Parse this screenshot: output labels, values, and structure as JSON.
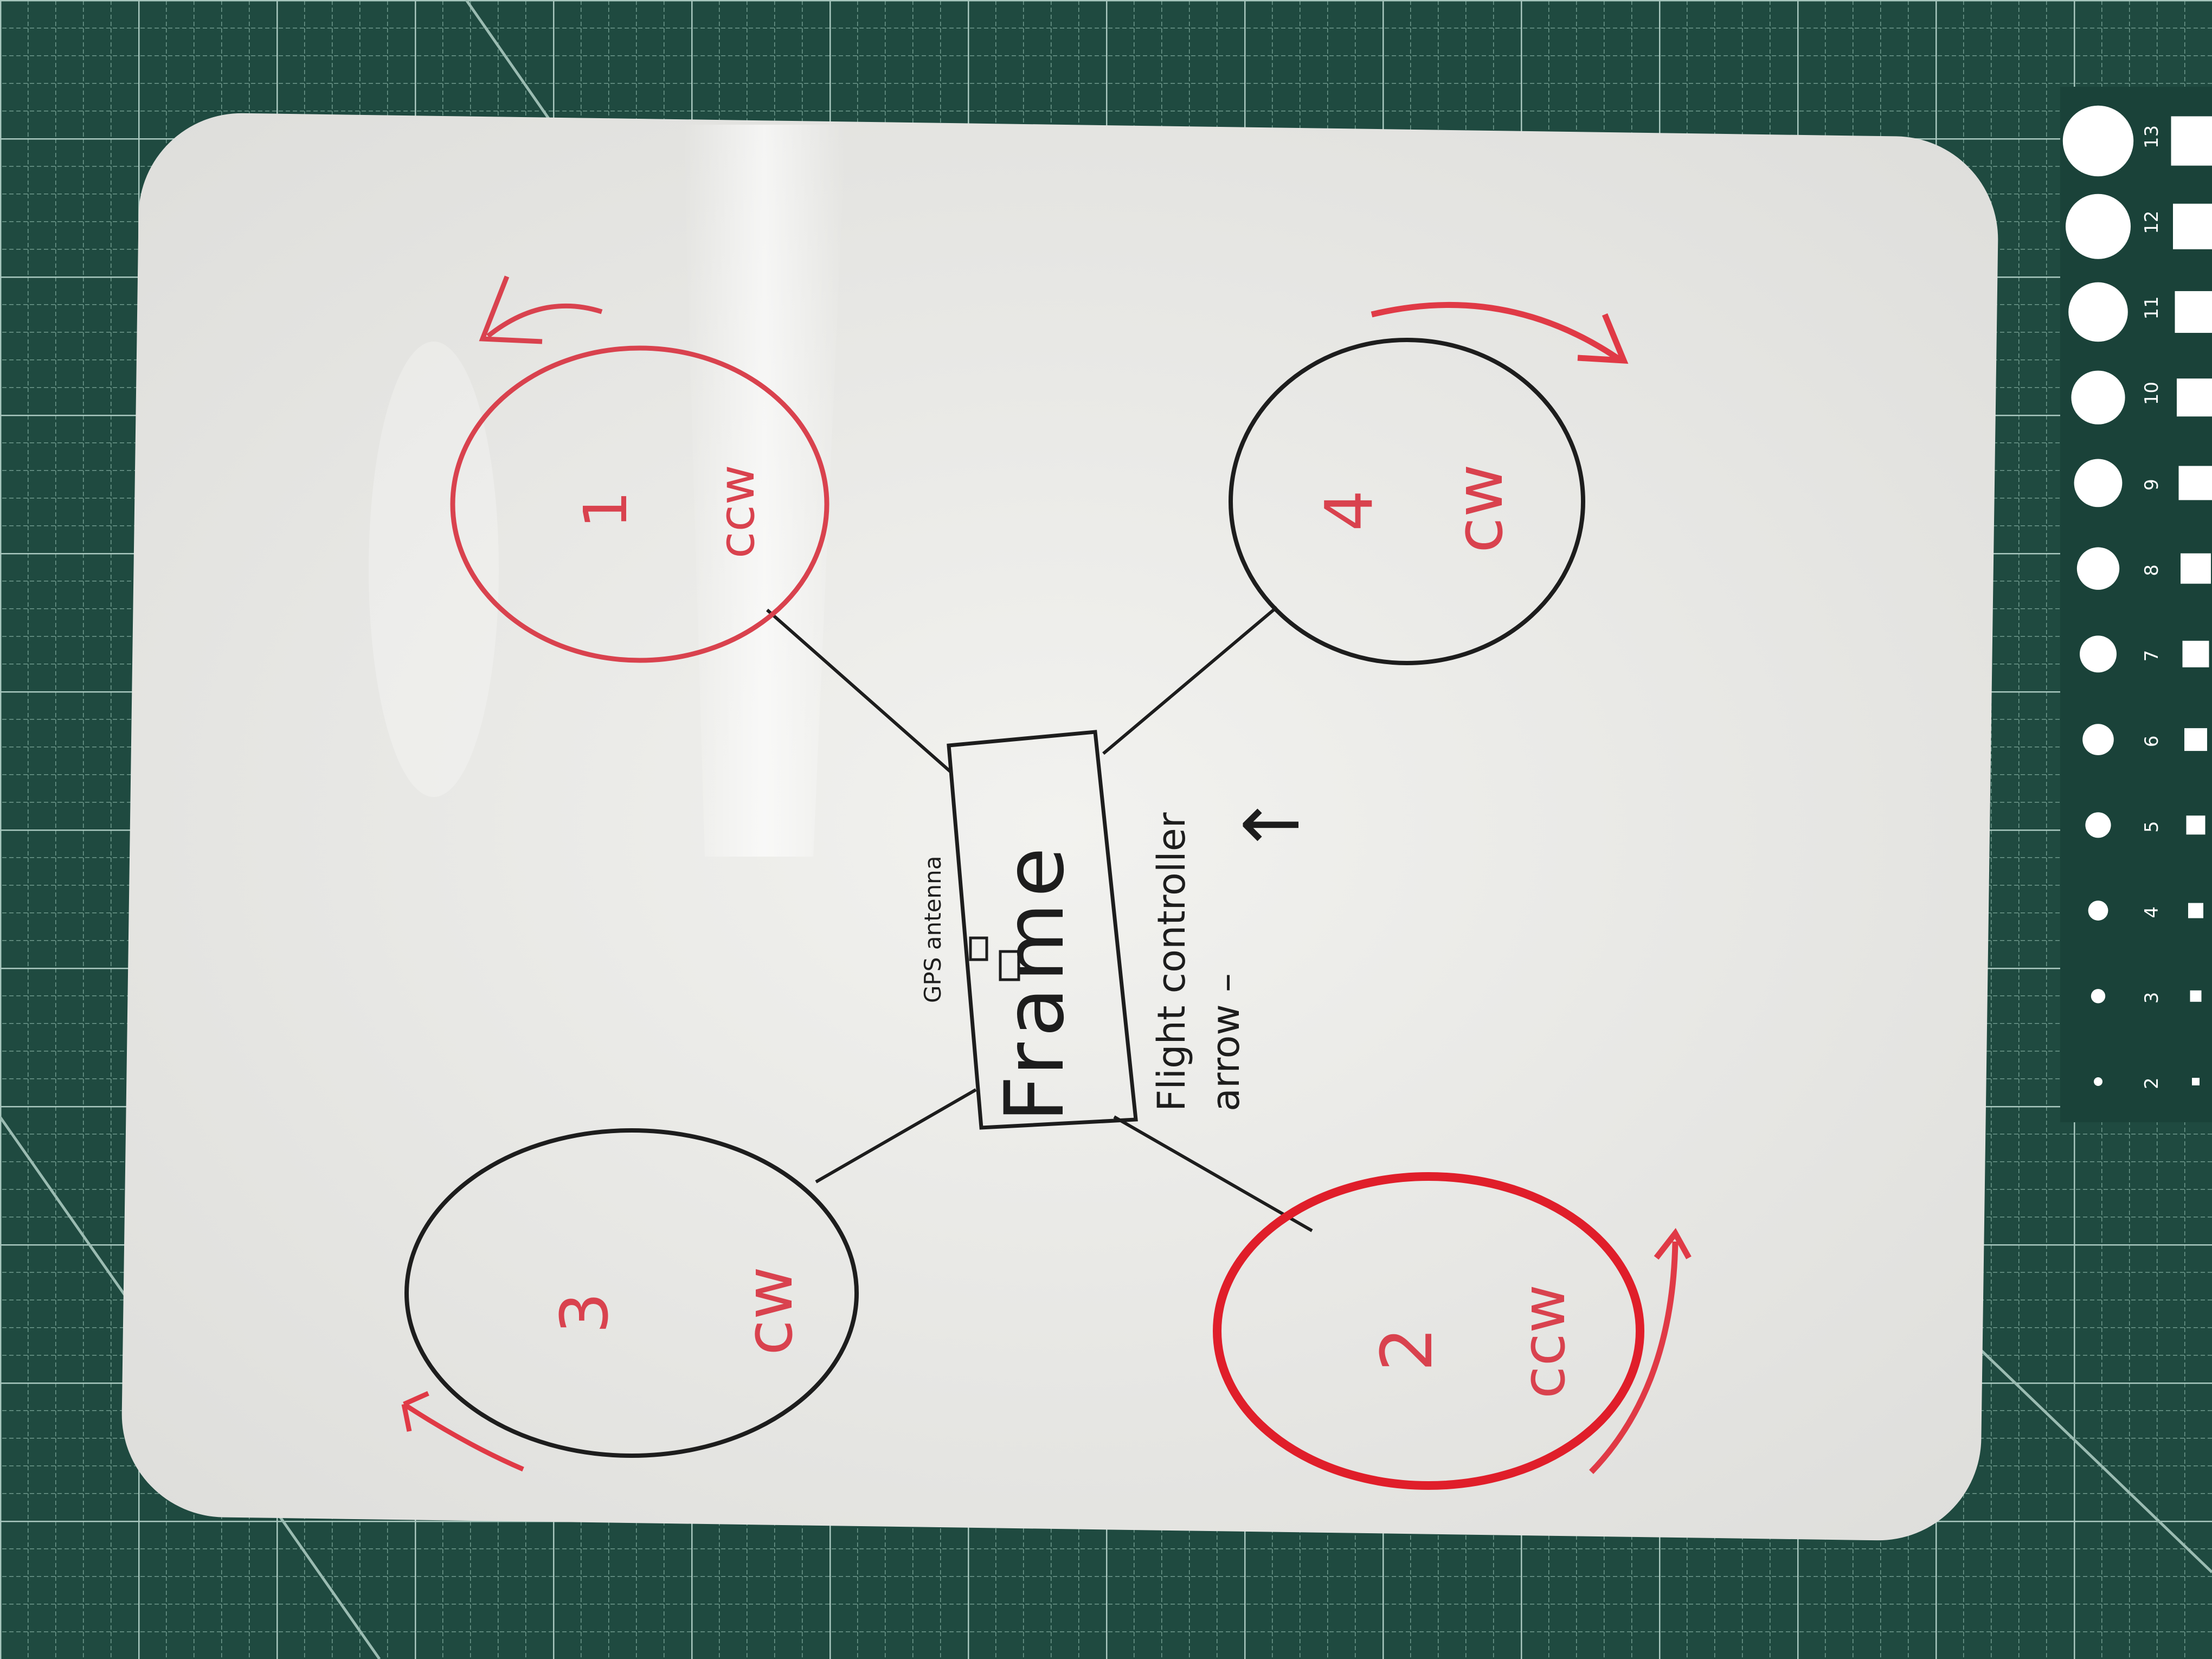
{
  "ruler": {
    "numbers": [
      "2",
      "3",
      "4",
      "5",
      "6",
      "7",
      "8",
      "9",
      "10",
      "11",
      "12",
      "13"
    ]
  },
  "diagram": {
    "frame_label": "Frame",
    "gps_label": "GPS antenna",
    "flight_controller_label": "Flight controller",
    "arrow_label": "arrow –",
    "arrow_symbol": "↑",
    "motors": [
      {
        "number": "1",
        "direction": "ccw",
        "ring_color": "#d9424e",
        "label_color": "#d9424e"
      },
      {
        "number": "4",
        "direction": "cw",
        "ring_color": "#1d1d1d",
        "label_color": "#d9424e"
      },
      {
        "number": "3",
        "direction": "cw",
        "ring_color": "#1d1d1d",
        "label_color": "#d9424e"
      },
      {
        "number": "2",
        "direction": "ccw",
        "ring_color": "#e01e2a",
        "label_color": "#d9424e"
      }
    ]
  },
  "colors": {
    "mat": "#1f4a40",
    "grid": "#7fa89c",
    "board": "#ecece9",
    "ink_black": "#1d1d1d",
    "ink_red": "#d9424e"
  }
}
